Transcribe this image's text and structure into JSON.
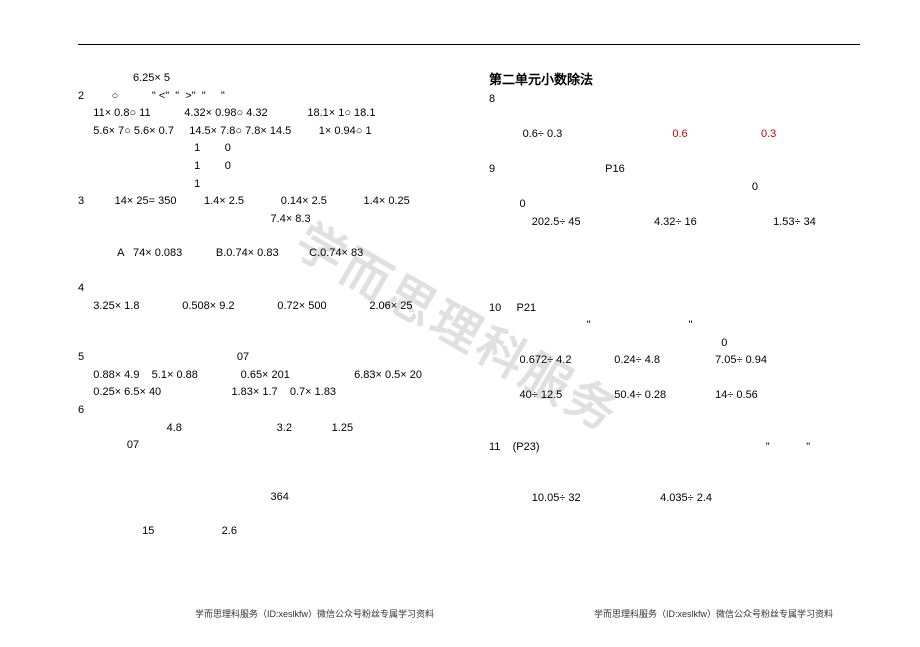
{
  "watermark": "学而思理科服务",
  "left": {
    "lines": [
      "                  6.25× 5",
      "2         ○           \" <\"  \"  >\"  \"     \"",
      "     11× 0.8○ 11           4.32× 0.98○ 4.32             18.1× 1○ 18.1",
      "     5.6× 7○ 5.6× 0.7     14.5× 7.8○ 7.8× 14.5         1× 0.94○ 1",
      "                                      1        0",
      "                                      1        0",
      "                                      1",
      "3          14× 25= 350         1.4× 2.5            0.14× 2.5            1.4× 0.25",
      "                                                               7.4× 8.3",
      "",
      "             A   74× 0.083           B.0.74× 0.83          C.0.74× 83",
      "",
      "4",
      "     3.25× 1.8              0.508× 9.2              0.72× 500              2.06× 25",
      "",
      "",
      "5                                                  07",
      "     0.88× 4.9    5.1× 0.88              0.65× 201                     6.83× 0.5× 20",
      "     0.25× 6.5× 40                       1.83× 1.7    0.7× 1.83",
      "6",
      "                             4.8                               3.2             1.25",
      "                07",
      "",
      "",
      "                                                               364",
      "",
      "                     15                      2.6"
    ]
  },
  "right": {
    "title": "第二单元小数除法",
    "lines_before_red": [
      "8"
    ],
    "red_line": {
      "prefix": "     0.6÷ 0.3",
      "r1": "0.6",
      "gap": "                        ",
      "r2": "0.3"
    },
    "lines_after_red": [
      "9                                    P16",
      "                                                                                      0",
      "          0",
      "              202.5÷ 45                        4.32÷ 16                         1.53÷ 34",
      "",
      "",
      "",
      "",
      "10     P21",
      "                                \"                                \"",
      "                                                                            0",
      "          0.672÷ 4.2              0.24÷ 4.8                  7.05÷ 0.94",
      "",
      "          40÷ 12.5                 50.4÷ 0.28                14÷ 0.56",
      "",
      "",
      "11    (P23)                                                                          \"            \"",
      "",
      "",
      "              10.05÷ 32                          4.035÷ 2.4"
    ]
  },
  "footer": "学而思理科服务（ID:xeslkfw）微信公众号粉丝专属学习资料"
}
